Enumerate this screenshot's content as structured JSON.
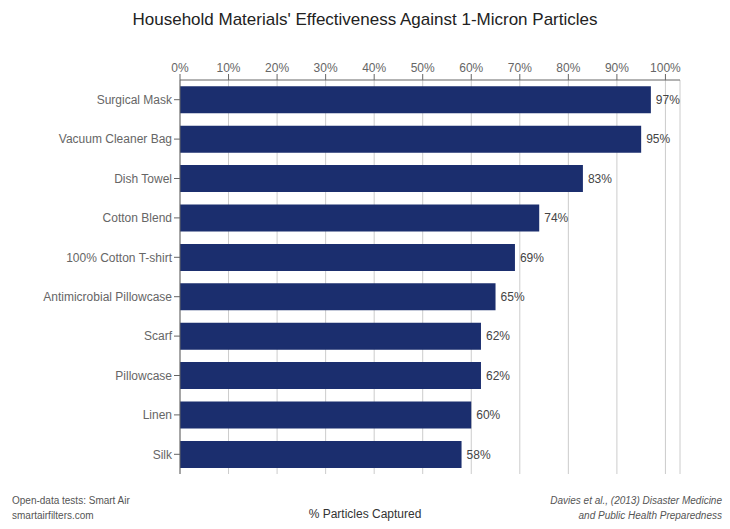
{
  "chart_data": {
    "type": "bar",
    "title": "Household Materials' Effectiveness Against 1-Micron Particles",
    "orientation": "horizontal",
    "categories": [
      "Silk",
      "Linen",
      "Pillowcase",
      "Scarf",
      "Antimicrobial Pillowcase",
      "100% Cotton T-shirt",
      "Cotton Blend",
      "Dish Towel",
      "Vacuum Cleaner Bag",
      "Surgical Mask"
    ],
    "values": [
      58,
      60,
      62,
      62,
      65,
      69,
      74,
      83,
      95,
      97
    ],
    "value_labels": [
      "58%",
      "60%",
      "62%",
      "62%",
      "65%",
      "69%",
      "74%",
      "83%",
      "95%",
      "97%"
    ],
    "data_labels": true,
    "xlim": [
      0,
      103
    ],
    "xticks": [
      {
        "value": 0,
        "label": "0%"
      },
      {
        "value": 10,
        "label": "10%"
      },
      {
        "value": 20,
        "label": "20%"
      },
      {
        "value": 30,
        "label": "30%"
      },
      {
        "value": 40,
        "label": "40%"
      },
      {
        "value": 50,
        "label": "50%"
      },
      {
        "value": 60,
        "label": "60%"
      },
      {
        "value": 70,
        "label": "70%"
      },
      {
        "value": 80,
        "label": "80%"
      },
      {
        "value": 90,
        "label": "90%"
      },
      {
        "value": 100,
        "label": "100%"
      }
    ],
    "xlabel": "% Particles Captured",
    "annotations": [
      "Open-data tests: Smart Air",
      "smartairfilters.com",
      "Davies et al., (2013) Disaster Medicine",
      "and Public Health Preparedness"
    ],
    "color": "#1b2e6e",
    "grid": true
  }
}
